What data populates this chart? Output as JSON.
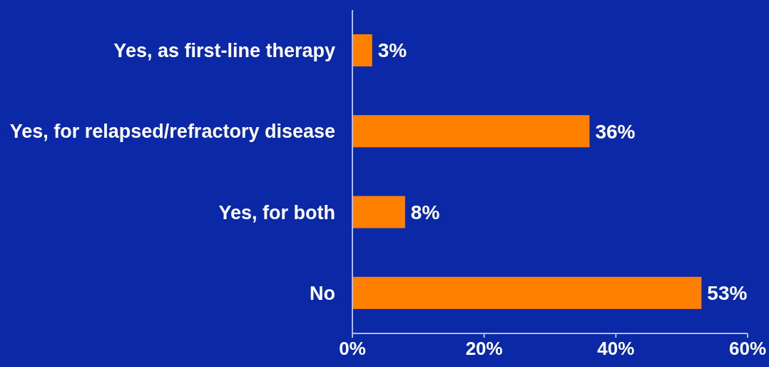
{
  "chart_data": {
    "type": "bar",
    "orientation": "horizontal",
    "categories": [
      "Yes, as first-line therapy",
      "Yes, for relapsed/refractory disease",
      "Yes, for both",
      "No"
    ],
    "values": [
      3,
      36,
      8,
      53
    ],
    "color": "#ff7f00",
    "value_labels": [
      "3%",
      "36%",
      "8%",
      "53%"
    ],
    "xlim": [
      0,
      60
    ],
    "xticks": [
      {
        "value": 0,
        "label": "0%"
      },
      {
        "value": 20,
        "label": "20%"
      },
      {
        "value": 40,
        "label": "40%"
      },
      {
        "value": 60,
        "label": "60%"
      }
    ]
  }
}
